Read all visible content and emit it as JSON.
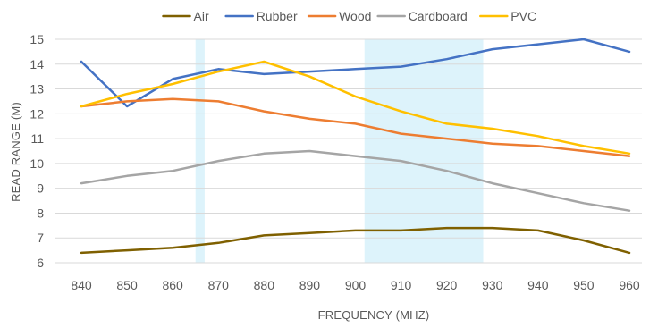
{
  "chart_data": {
    "type": "line",
    "xlabel": "FREQUENCY (MHZ)",
    "ylabel": "READ RANGE (M)",
    "x": [
      840,
      850,
      860,
      870,
      880,
      890,
      900,
      910,
      920,
      930,
      940,
      950,
      960
    ],
    "xlim": [
      840,
      960
    ],
    "ylim": [
      6,
      15
    ],
    "y_ticks": [
      6,
      7,
      8,
      9,
      10,
      11,
      12,
      13,
      14,
      15
    ],
    "grid": true,
    "legend_position": "top",
    "highlight_bands": [
      {
        "from": 865,
        "to": 867
      },
      {
        "from": 902,
        "to": 928
      }
    ],
    "series": [
      {
        "name": "Air",
        "color": "#7F6000",
        "values": [
          6.4,
          6.5,
          6.6,
          6.8,
          7.1,
          7.2,
          7.3,
          7.3,
          7.4,
          7.4,
          7.3,
          6.9,
          6.4
        ]
      },
      {
        "name": "Rubber",
        "color": "#4472C4",
        "values": [
          14.1,
          12.3,
          13.4,
          13.8,
          13.6,
          13.7,
          13.8,
          13.9,
          14.2,
          14.6,
          14.8,
          15.0,
          14.5
        ]
      },
      {
        "name": "Wood",
        "color": "#ED7D31",
        "values": [
          12.3,
          12.5,
          12.6,
          12.5,
          12.1,
          11.8,
          11.6,
          11.2,
          11.0,
          10.8,
          10.7,
          10.5,
          10.3
        ]
      },
      {
        "name": "Cardboard",
        "color": "#A5A5A5",
        "values": [
          9.2,
          9.5,
          9.7,
          10.1,
          10.4,
          10.5,
          10.3,
          10.1,
          9.7,
          9.2,
          8.8,
          8.4,
          8.1
        ]
      },
      {
        "name": "PVC",
        "color": "#FFC000",
        "values": [
          12.3,
          12.8,
          13.2,
          13.7,
          14.1,
          13.5,
          12.7,
          12.1,
          11.6,
          11.4,
          11.1,
          10.7,
          10.4
        ]
      }
    ]
  }
}
